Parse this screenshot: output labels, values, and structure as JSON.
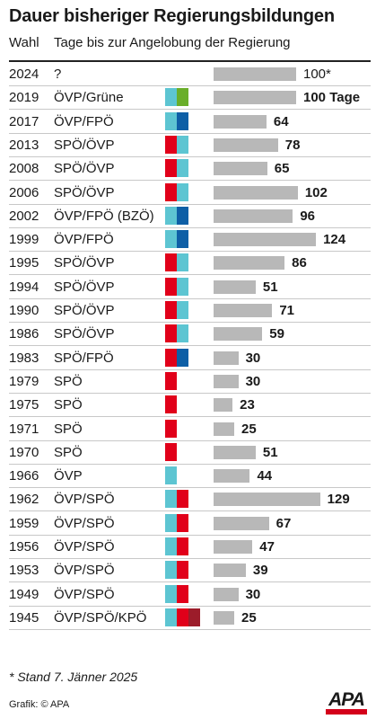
{
  "title": "Dauer bisheriger Regierungsbildungen",
  "header": {
    "col_wahl": "Wahl",
    "col_tage": "Tage bis zur Angelobung der Regierung"
  },
  "footnote": "* Stand 7. Jänner 2025",
  "credit": "Grafik: © APA",
  "logo_text": "APA",
  "party_colors": {
    "ÖVP": "#5dc5d2",
    "SPÖ": "#e1001a",
    "FPÖ": "#0e5fa6",
    "Grüne": "#6aae2a",
    "KPÖ": "#9c1c2a"
  },
  "chart_data": {
    "type": "bar",
    "orientation": "horizontal",
    "title": "Dauer bisheriger Regierungsbildungen",
    "xlabel": "Tage bis zur Angelobung der Regierung",
    "xlim": [
      0,
      130
    ],
    "rows": [
      {
        "year": "2024",
        "party": "?",
        "parties": [],
        "value": 100,
        "label": "100*",
        "bold": false
      },
      {
        "year": "2019",
        "party": "ÖVP/Grüne",
        "parties": [
          "ÖVP",
          "Grüne"
        ],
        "value": 100,
        "label": "100 Tage",
        "bold": true
      },
      {
        "year": "2017",
        "party": "ÖVP/FPÖ",
        "parties": [
          "ÖVP",
          "FPÖ"
        ],
        "value": 64,
        "label": "64",
        "bold": true
      },
      {
        "year": "2013",
        "party": "SPÖ/ÖVP",
        "parties": [
          "SPÖ",
          "ÖVP"
        ],
        "value": 78,
        "label": "78",
        "bold": true
      },
      {
        "year": "2008",
        "party": "SPÖ/ÖVP",
        "parties": [
          "SPÖ",
          "ÖVP"
        ],
        "value": 65,
        "label": "65",
        "bold": true
      },
      {
        "year": "2006",
        "party": "SPÖ/ÖVP",
        "parties": [
          "SPÖ",
          "ÖVP"
        ],
        "value": 102,
        "label": "102",
        "bold": true
      },
      {
        "year": "2002",
        "party": "ÖVP/FPÖ (BZÖ)",
        "parties": [
          "ÖVP",
          "FPÖ"
        ],
        "value": 96,
        "label": "96",
        "bold": true
      },
      {
        "year": "1999",
        "party": "ÖVP/FPÖ",
        "parties": [
          "ÖVP",
          "FPÖ"
        ],
        "value": 124,
        "label": "124",
        "bold": true
      },
      {
        "year": "1995",
        "party": "SPÖ/ÖVP",
        "parties": [
          "SPÖ",
          "ÖVP"
        ],
        "value": 86,
        "label": "86",
        "bold": true
      },
      {
        "year": "1994",
        "party": "SPÖ/ÖVP",
        "parties": [
          "SPÖ",
          "ÖVP"
        ],
        "value": 51,
        "label": "51",
        "bold": true
      },
      {
        "year": "1990",
        "party": "SPÖ/ÖVP",
        "parties": [
          "SPÖ",
          "ÖVP"
        ],
        "value": 71,
        "label": "71",
        "bold": true
      },
      {
        "year": "1986",
        "party": "SPÖ/ÖVP",
        "parties": [
          "SPÖ",
          "ÖVP"
        ],
        "value": 59,
        "label": "59",
        "bold": true
      },
      {
        "year": "1983",
        "party": "SPÖ/FPÖ",
        "parties": [
          "SPÖ",
          "FPÖ"
        ],
        "value": 30,
        "label": "30",
        "bold": true
      },
      {
        "year": "1979",
        "party": "SPÖ",
        "parties": [
          "SPÖ"
        ],
        "value": 30,
        "label": "30",
        "bold": true
      },
      {
        "year": "1975",
        "party": "SPÖ",
        "parties": [
          "SPÖ"
        ],
        "value": 23,
        "label": "23",
        "bold": true
      },
      {
        "year": "1971",
        "party": "SPÖ",
        "parties": [
          "SPÖ"
        ],
        "value": 25,
        "label": "25",
        "bold": true
      },
      {
        "year": "1970",
        "party": "SPÖ",
        "parties": [
          "SPÖ"
        ],
        "value": 51,
        "label": "51",
        "bold": true
      },
      {
        "year": "1966",
        "party": "ÖVP",
        "parties": [
          "ÖVP"
        ],
        "value": 44,
        "label": "44",
        "bold": true
      },
      {
        "year": "1962",
        "party": "ÖVP/SPÖ",
        "parties": [
          "ÖVP",
          "SPÖ"
        ],
        "value": 129,
        "label": "129",
        "bold": true
      },
      {
        "year": "1959",
        "party": "ÖVP/SPÖ",
        "parties": [
          "ÖVP",
          "SPÖ"
        ],
        "value": 67,
        "label": "67",
        "bold": true
      },
      {
        "year": "1956",
        "party": "ÖVP/SPÖ",
        "parties": [
          "ÖVP",
          "SPÖ"
        ],
        "value": 47,
        "label": "47",
        "bold": true
      },
      {
        "year": "1953",
        "party": "ÖVP/SPÖ",
        "parties": [
          "ÖVP",
          "SPÖ"
        ],
        "value": 39,
        "label": "39",
        "bold": true
      },
      {
        "year": "1949",
        "party": "ÖVP/SPÖ",
        "parties": [
          "ÖVP",
          "SPÖ"
        ],
        "value": 30,
        "label": "30",
        "bold": true
      },
      {
        "year": "1945",
        "party": "ÖVP/SPÖ/KPÖ",
        "parties": [
          "ÖVP",
          "SPÖ",
          "KPÖ"
        ],
        "value": 25,
        "label": "25",
        "bold": true
      }
    ]
  }
}
